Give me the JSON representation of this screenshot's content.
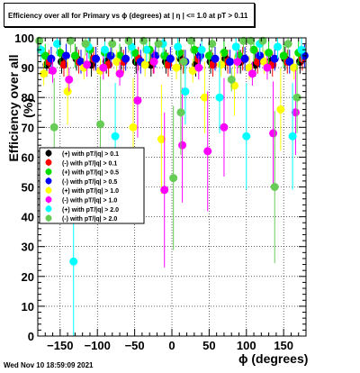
{
  "title": "Efficiency over all for Primary vs ϕ (degrees) at |  η | <= 1.0 at pT > 0.11",
  "footer": "Wed Nov 10 18:59:09 2021",
  "chart_data": {
    "type": "scatter",
    "xlabel": "ϕ (degrees)",
    "ylabel": "Efficiency over all (%)",
    "xlim": [
      -180,
      180
    ],
    "ylim": [
      0,
      100
    ],
    "xticks": [
      -150,
      -100,
      -50,
      0,
      50,
      100,
      150
    ],
    "yticks": [
      0,
      10,
      20,
      30,
      40,
      50,
      60,
      70,
      80,
      90,
      100
    ],
    "grid": true,
    "legend_position": "left-middle",
    "series": [
      {
        "name": "(+) with pT/|q| > 0.1",
        "color": "#000000",
        "x": [
          -168,
          -148,
          -128,
          -108,
          -88,
          -68,
          -48,
          -28,
          -8,
          12,
          32,
          52,
          72,
          92,
          112,
          132,
          152,
          172
        ],
        "y": [
          91,
          92,
          93,
          91,
          92,
          93,
          92,
          91,
          92,
          93,
          91,
          92,
          93,
          92,
          91,
          92,
          93,
          92
        ]
      },
      {
        "name": "(-) with pT/|q| > 0.1",
        "color": "#ff0000",
        "x": [
          -165,
          -145,
          -125,
          -105,
          -85,
          -65,
          -45,
          -25,
          -5,
          15,
          35,
          55,
          75,
          95,
          115,
          135,
          155,
          175
        ],
        "y": [
          92,
          91,
          92,
          93,
          91,
          92,
          93,
          92,
          91,
          92,
          93,
          91,
          92,
          93,
          92,
          91,
          92,
          93
        ]
      },
      {
        "name": "(+) with pT/|q| > 0.5",
        "color": "#00dd00",
        "x": [
          -170,
          -150,
          -130,
          -110,
          -90,
          -70,
          -50,
          -30,
          -10,
          10,
          30,
          50,
          70,
          90,
          110,
          130,
          150,
          170
        ],
        "y": [
          94,
          95,
          94,
          96,
          95,
          94,
          95,
          96,
          94,
          95,
          96,
          94,
          95,
          94,
          96,
          95,
          94,
          95
        ]
      },
      {
        "name": "(-) with pT/|q| > 0.5",
        "color": "#0000ff",
        "x": [
          -162,
          -142,
          -122,
          -102,
          -82,
          -62,
          -42,
          -22,
          -2,
          18,
          38,
          58,
          78,
          98,
          118,
          138,
          158,
          178
        ],
        "y": [
          93,
          94,
          92,
          93,
          94,
          93,
          92,
          94,
          93,
          92,
          94,
          93,
          92,
          93,
          94,
          93,
          92,
          94
        ]
      },
      {
        "name": "(+) with pT/|q| > 1.0",
        "color": "#ffff00",
        "x": [
          -172,
          -140,
          -118,
          -96,
          -74,
          -52,
          -36,
          -14,
          6,
          28,
          44,
          66,
          84,
          104,
          124,
          146,
          164
        ],
        "y": [
          88,
          82,
          90,
          89,
          92,
          70,
          91,
          66,
          90,
          89,
          80,
          91,
          84,
          90,
          92,
          76,
          90
        ]
      },
      {
        "name": "(-) with pT/|q| > 1.0",
        "color": "#ff00ff",
        "x": [
          -160,
          -138,
          -114,
          -92,
          -70,
          -46,
          -24,
          -10,
          14,
          36,
          48,
          70,
          88,
          108,
          128,
          136,
          166
        ],
        "y": [
          89,
          86,
          91,
          90,
          88,
          79,
          92,
          49,
          64,
          90,
          62,
          70,
          92,
          88,
          90,
          68,
          75
        ]
      },
      {
        "name": "(+) with pT/|q| > 2.0",
        "color": "#00ffff",
        "x": [
          -176,
          -154,
          -132,
          -112,
          -90,
          -76,
          -54,
          -34,
          -12,
          8,
          18,
          40,
          64,
          86,
          100,
          118,
          142,
          162,
          174
        ],
        "y": [
          96,
          98,
          25,
          97,
          96,
          67,
          97,
          96,
          98,
          97,
          82,
          96,
          80,
          97,
          67,
          98,
          97,
          67,
          96
        ]
      },
      {
        "name": "(-) with pT/|q| > 2.0",
        "color": "#66cc55",
        "x": [
          -178,
          -158,
          -136,
          -116,
          -96,
          -80,
          -58,
          -38,
          -18,
          2,
          12,
          16,
          26,
          54,
          80,
          96,
          106,
          122,
          138,
          156,
          168
        ],
        "y": [
          99,
          70,
          99,
          98,
          71,
          98,
          99,
          99,
          98,
          53,
          75,
          92,
          99,
          98,
          86,
          99,
          99,
          99,
          50,
          98,
          80
        ]
      }
    ]
  }
}
